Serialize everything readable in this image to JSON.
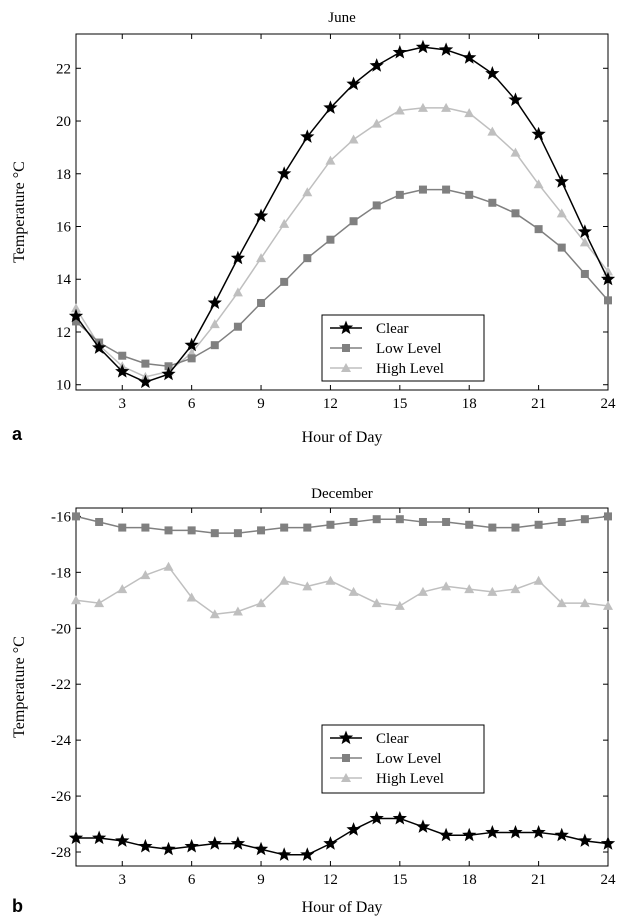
{
  "chart_data": [
    {
      "type": "line",
      "panel_label": "a",
      "title": "June",
      "xlabel": "Hour of Day",
      "ylabel": "Temperature °C",
      "xlim": [
        1,
        24
      ],
      "ylim": [
        9.8,
        23.3
      ],
      "xticks": [
        3,
        6,
        9,
        12,
        15,
        18,
        21,
        24
      ],
      "yticks": [
        10,
        12,
        14,
        16,
        18,
        20,
        22
      ],
      "legend_position": "bottom-center",
      "x": [
        1,
        2,
        3,
        4,
        5,
        6,
        7,
        8,
        9,
        10,
        11,
        12,
        13,
        14,
        15,
        16,
        17,
        18,
        19,
        20,
        21,
        22,
        23,
        24
      ],
      "series": [
        {
          "name": "Clear",
          "marker": "star",
          "color": "#000000",
          "values": [
            12.6,
            11.4,
            10.5,
            10.1,
            10.4,
            11.5,
            13.1,
            14.8,
            16.4,
            18.0,
            19.4,
            20.5,
            21.4,
            22.1,
            22.6,
            22.8,
            22.7,
            22.4,
            21.8,
            20.8,
            19.5,
            17.7,
            15.8,
            14.0
          ]
        },
        {
          "name": "Low Level",
          "marker": "square",
          "color": "#808080",
          "values": [
            12.4,
            11.6,
            11.1,
            10.8,
            10.7,
            11.0,
            11.5,
            12.2,
            13.1,
            13.9,
            14.8,
            15.5,
            16.2,
            16.8,
            17.2,
            17.4,
            17.4,
            17.2,
            16.9,
            16.5,
            15.9,
            15.2,
            14.2,
            13.2
          ]
        },
        {
          "name": "High Level",
          "marker": "triangle",
          "color": "#bfbfbf",
          "values": [
            12.9,
            11.5,
            10.7,
            10.3,
            10.5,
            11.2,
            12.3,
            13.5,
            14.8,
            16.1,
            17.3,
            18.5,
            19.3,
            19.9,
            20.4,
            20.5,
            20.5,
            20.3,
            19.6,
            18.8,
            17.6,
            16.5,
            15.4,
            14.3
          ]
        }
      ]
    },
    {
      "type": "line",
      "panel_label": "b",
      "title": "December",
      "xlabel": "Hour of Day",
      "ylabel": "Temperature °C",
      "xlim": [
        1,
        24
      ],
      "ylim": [
        -28.5,
        -15.7
      ],
      "xticks": [
        3,
        6,
        9,
        12,
        15,
        18,
        21,
        24
      ],
      "yticks": [
        -28,
        -26,
        -24,
        -22,
        -20,
        -18,
        -16
      ],
      "legend_position": "bottom-center",
      "x": [
        1,
        2,
        3,
        4,
        5,
        6,
        7,
        8,
        9,
        10,
        11,
        12,
        13,
        14,
        15,
        16,
        17,
        18,
        19,
        20,
        21,
        22,
        23,
        24
      ],
      "series": [
        {
          "name": "Clear",
          "marker": "star",
          "color": "#000000",
          "values": [
            -27.5,
            -27.5,
            -27.6,
            -27.8,
            -27.9,
            -27.8,
            -27.7,
            -27.7,
            -27.9,
            -28.1,
            -28.1,
            -27.7,
            -27.2,
            -26.8,
            -26.8,
            -27.1,
            -27.4,
            -27.4,
            -27.3,
            -27.3,
            -27.3,
            -27.4,
            -27.6,
            -27.7
          ]
        },
        {
          "name": "Low Level",
          "marker": "square",
          "color": "#808080",
          "values": [
            -16.0,
            -16.2,
            -16.4,
            -16.4,
            -16.5,
            -16.5,
            -16.6,
            -16.6,
            -16.5,
            -16.4,
            -16.4,
            -16.3,
            -16.2,
            -16.1,
            -16.1,
            -16.2,
            -16.2,
            -16.3,
            -16.4,
            -16.4,
            -16.3,
            -16.2,
            -16.1,
            -16.0
          ]
        },
        {
          "name": "High Level",
          "marker": "triangle",
          "color": "#bfbfbf",
          "values": [
            -19.0,
            -19.1,
            -18.6,
            -18.1,
            -17.8,
            -18.9,
            -19.5,
            -19.4,
            -19.1,
            -18.3,
            -18.5,
            -18.3,
            -18.7,
            -19.1,
            -19.2,
            -18.7,
            -18.5,
            -18.6,
            -18.7,
            -18.6,
            -18.3,
            -19.1,
            -19.1,
            -19.2
          ]
        }
      ]
    }
  ]
}
